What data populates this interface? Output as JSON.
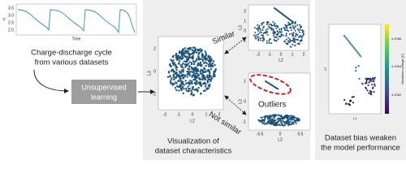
{
  "cycle_plot": {
    "yticks": [
      "3.5",
      "3.0",
      "2.5",
      "2.0"
    ],
    "ylabel": "V",
    "xlabel": "Time"
  },
  "left_caption": [
    "Charge-discharge cycle",
    "from various datasets"
  ],
  "process_box": [
    "Unsupervised",
    "learning"
  ],
  "main_plot": {
    "xticks": [
      "-2",
      "-1",
      "0",
      "1",
      "2"
    ],
    "yticks": [
      "2",
      "0",
      "-2"
    ],
    "xlabel": "L2",
    "ylabel": "L3"
  },
  "similar_plot": {
    "xticks": [
      "-2",
      "-1",
      "0",
      "1",
      "2"
    ],
    "yticks": [
      "2",
      "1",
      "0",
      "-1"
    ],
    "xlabel": "L2",
    "ylabel": "L3"
  },
  "outlier_plot": {
    "xticks": [
      "-0.5",
      "0",
      "0.5"
    ],
    "yticks": [
      "1",
      "0",
      "-1"
    ],
    "xlabel": "L2",
    "ylabel": "L3"
  },
  "similar_label": "Similar",
  "not_similar_label": "Not similar",
  "outliers_label": "Outliers",
  "middle_caption": [
    "Visualization of",
    "dataset characteristics"
  ],
  "bias_plot": {
    "xlabel": "L1",
    "ylabel": "L2",
    "colorbar_ticks": [
      "4.2086",
      "4.2084",
      "4.2082"
    ],
    "colorbar_label": "Maximum voltage [V]"
  },
  "right_caption": [
    "Dataset bias weaken",
    "the model performance"
  ]
}
